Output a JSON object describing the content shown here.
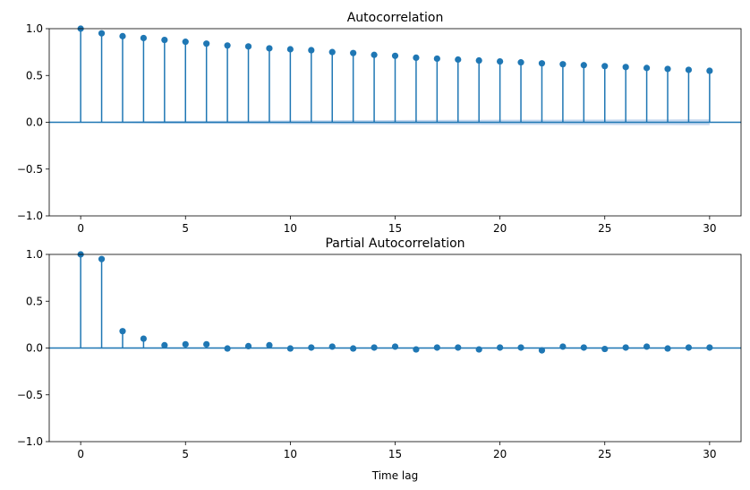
{
  "chart_data": [
    {
      "type": "stem",
      "title": "Autocorrelation",
      "xlabel": "",
      "ylabel": "",
      "xlim": [
        -1.5,
        31.5
      ],
      "ylim": [
        -1,
        1
      ],
      "xticks": [
        0,
        5,
        10,
        15,
        20,
        25,
        30
      ],
      "yticks": [
        -1.0,
        -0.5,
        0.0,
        0.5,
        1.0
      ],
      "ytick_labels": [
        "−1.0",
        "−0.5",
        "0.0",
        "0.5",
        "1.0"
      ],
      "grid": false,
      "x": [
        0,
        1,
        2,
        3,
        4,
        5,
        6,
        7,
        8,
        9,
        10,
        11,
        12,
        13,
        14,
        15,
        16,
        17,
        18,
        19,
        20,
        21,
        22,
        23,
        24,
        25,
        26,
        27,
        28,
        29,
        30
      ],
      "values": [
        1.0,
        0.95,
        0.92,
        0.9,
        0.88,
        0.86,
        0.84,
        0.82,
        0.81,
        0.79,
        0.78,
        0.77,
        0.75,
        0.74,
        0.72,
        0.71,
        0.69,
        0.68,
        0.67,
        0.66,
        0.65,
        0.64,
        0.63,
        0.62,
        0.61,
        0.6,
        0.59,
        0.58,
        0.57,
        0.56,
        0.55
      ],
      "confidence_band": {
        "x": [
          0,
          1,
          2,
          3,
          4,
          5,
          6,
          7,
          8,
          9,
          10,
          11,
          12,
          13,
          14,
          15,
          16,
          17,
          18,
          19,
          20,
          21,
          22,
          23,
          24,
          25,
          26,
          27,
          28,
          29,
          30
        ],
        "upper": [
          0.0,
          0.007,
          0.01,
          0.012,
          0.014,
          0.015,
          0.016,
          0.017,
          0.018,
          0.019,
          0.02,
          0.021,
          0.022,
          0.023,
          0.023,
          0.024,
          0.025,
          0.025,
          0.026,
          0.026,
          0.027,
          0.027,
          0.028,
          0.028,
          0.029,
          0.029,
          0.03,
          0.03,
          0.03,
          0.031,
          0.031
        ],
        "lower": [
          0.0,
          -0.007,
          -0.01,
          -0.012,
          -0.014,
          -0.015,
          -0.016,
          -0.017,
          -0.018,
          -0.019,
          -0.02,
          -0.021,
          -0.022,
          -0.023,
          -0.023,
          -0.024,
          -0.025,
          -0.025,
          -0.026,
          -0.026,
          -0.027,
          -0.027,
          -0.028,
          -0.028,
          -0.029,
          -0.029,
          -0.03,
          -0.03,
          -0.03,
          -0.031,
          -0.031
        ]
      },
      "color": "#1f77b4",
      "band_color": "#aec7e8"
    },
    {
      "type": "stem",
      "title": "Partial Autocorrelation",
      "xlabel": "Time lag",
      "ylabel": "",
      "xlim": [
        -1.5,
        31.5
      ],
      "ylim": [
        -1,
        1
      ],
      "xticks": [
        0,
        5,
        10,
        15,
        20,
        25,
        30
      ],
      "yticks": [
        -1.0,
        -0.5,
        0.0,
        0.5,
        1.0
      ],
      "ytick_labels": [
        "−1.0",
        "−0.5",
        "0.0",
        "0.5",
        "1.0"
      ],
      "grid": false,
      "x": [
        0,
        1,
        2,
        3,
        4,
        5,
        6,
        7,
        8,
        9,
        10,
        11,
        12,
        13,
        14,
        15,
        16,
        17,
        18,
        19,
        20,
        21,
        22,
        23,
        24,
        25,
        26,
        27,
        28,
        29,
        30
      ],
      "values": [
        1.0,
        0.95,
        0.18,
        0.1,
        0.03,
        0.04,
        0.04,
        -0.005,
        0.02,
        0.03,
        -0.005,
        0.005,
        0.015,
        -0.005,
        0.005,
        0.015,
        -0.015,
        0.005,
        0.005,
        -0.015,
        0.005,
        0.005,
        -0.025,
        0.015,
        0.005,
        -0.01,
        0.005,
        0.015,
        -0.005,
        0.005,
        0.005
      ],
      "confidence_band": {
        "x": [
          0,
          1,
          2,
          3,
          4,
          5,
          6,
          7,
          8,
          9,
          10,
          11,
          12,
          13,
          14,
          15,
          16,
          17,
          18,
          19,
          20,
          21,
          22,
          23,
          24,
          25,
          26,
          27,
          28,
          29,
          30
        ],
        "upper": [
          0.0,
          0.007,
          0.007,
          0.007,
          0.007,
          0.007,
          0.007,
          0.007,
          0.007,
          0.007,
          0.007,
          0.007,
          0.007,
          0.007,
          0.007,
          0.007,
          0.007,
          0.007,
          0.007,
          0.007,
          0.007,
          0.007,
          0.007,
          0.007,
          0.007,
          0.007,
          0.007,
          0.007,
          0.007,
          0.007,
          0.007
        ],
        "lower": [
          0.0,
          -0.007,
          -0.007,
          -0.007,
          -0.007,
          -0.007,
          -0.007,
          -0.007,
          -0.007,
          -0.007,
          -0.007,
          -0.007,
          -0.007,
          -0.007,
          -0.007,
          -0.007,
          -0.007,
          -0.007,
          -0.007,
          -0.007,
          -0.007,
          -0.007,
          -0.007,
          -0.007,
          -0.007,
          -0.007,
          -0.007,
          -0.007,
          -0.007,
          -0.007,
          -0.007
        ]
      },
      "color": "#1f77b4",
      "band_color": "#aec7e8"
    }
  ]
}
